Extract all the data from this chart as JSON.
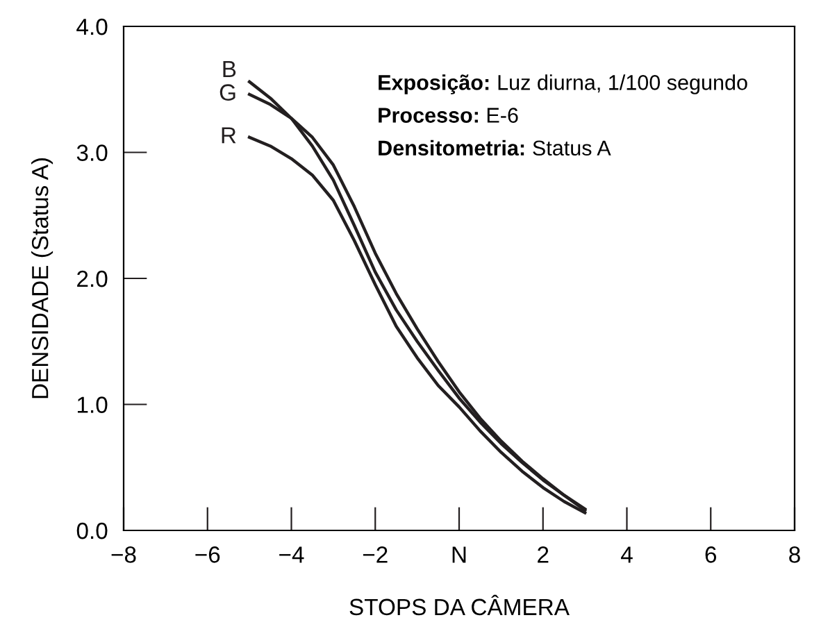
{
  "chart_data": {
    "type": "line",
    "xlabel": "STOPS DA CÂMERA",
    "ylabel": "DENSIDADE (Status A)",
    "x": [
      -5,
      -4.5,
      -4,
      -3.5,
      -3,
      -2.5,
      -2,
      -1.5,
      -1,
      -0.5,
      0,
      0.5,
      1,
      1.5,
      2,
      2.5,
      3
    ],
    "series": [
      {
        "name": "B",
        "color": "#231f20",
        "values": [
          3.56,
          3.43,
          3.27,
          3.05,
          2.78,
          2.42,
          2.05,
          1.75,
          1.5,
          1.27,
          1.05,
          0.86,
          0.69,
          0.54,
          0.4,
          0.28,
          0.17
        ]
      },
      {
        "name": "G",
        "color": "#231f20",
        "values": [
          3.46,
          3.38,
          3.27,
          3.12,
          2.9,
          2.57,
          2.2,
          1.88,
          1.6,
          1.34,
          1.1,
          0.89,
          0.71,
          0.55,
          0.41,
          0.28,
          0.16
        ]
      },
      {
        "name": "R",
        "color": "#231f20",
        "values": [
          3.12,
          3.05,
          2.95,
          2.82,
          2.62,
          2.3,
          1.95,
          1.62,
          1.37,
          1.15,
          0.98,
          0.79,
          0.62,
          0.47,
          0.34,
          0.23,
          0.14
        ]
      }
    ],
    "xlim": [
      -8,
      8
    ],
    "ylim": [
      0,
      4
    ],
    "xticks": [
      {
        "value": -8,
        "label": "−8"
      },
      {
        "value": -6,
        "label": "−6"
      },
      {
        "value": -4,
        "label": "−4"
      },
      {
        "value": -2,
        "label": "−2"
      },
      {
        "value": 0,
        "label": "N"
      },
      2,
      4,
      6,
      8
    ],
    "yticks": [
      {
        "value": 0,
        "label": "0.0"
      },
      {
        "value": 1,
        "label": "1.0"
      },
      {
        "value": 2,
        "label": "2.0"
      },
      {
        "value": 3,
        "label": "3.0"
      },
      {
        "value": 4,
        "label": "4.0"
      }
    ],
    "annotations": [
      "Exposição: Luz diurna, 1/100 segundo",
      "Processo: E-6",
      "Densitometria: Status A"
    ],
    "grid": false,
    "legend": false,
    "marker": "none",
    "line_style": "solid"
  }
}
